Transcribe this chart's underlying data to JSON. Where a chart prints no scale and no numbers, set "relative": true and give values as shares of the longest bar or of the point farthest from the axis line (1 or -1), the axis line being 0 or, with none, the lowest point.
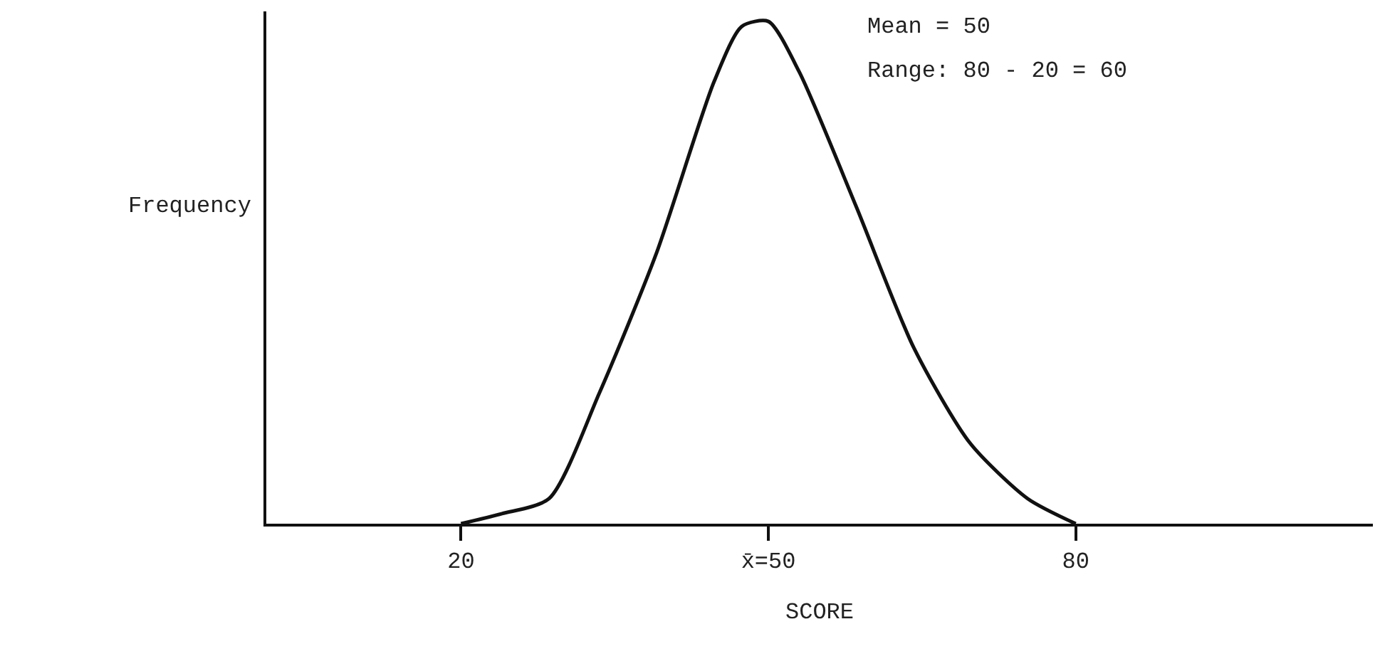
{
  "chart_data": {
    "type": "line",
    "relative": true,
    "xlabel": "SCORE",
    "ylabel": "Frequency",
    "x": [
      20,
      24,
      28.6,
      33.5,
      39.1,
      44.7,
      47.4,
      50,
      53,
      58.6,
      64.2,
      69.7,
      75.3,
      80
    ],
    "series": [
      {
        "color": "#111111",
        "values": [
          0,
          0.02,
          0.05,
          0.26,
          0.54,
          0.88,
          0.99,
          1,
          0.9,
          0.63,
          0.35,
          0.16,
          0.05,
          0
        ]
      }
    ],
    "xlim": [
      1,
      109
    ],
    "xticks": [
      20,
      {
        "value": 50,
        "label": "x̄=50"
      },
      80
    ],
    "annotations": [
      "Mean = 50",
      "Range: 80 - 20 = 60"
    ],
    "legend": false,
    "marker": "none",
    "line_style": "solid"
  }
}
